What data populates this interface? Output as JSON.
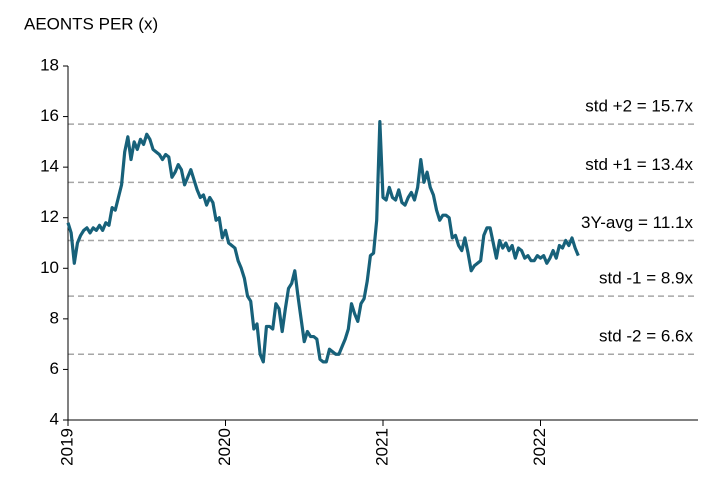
{
  "chart_data": {
    "type": "line",
    "title": "AEONTS PER (x)",
    "x": [
      2019.0,
      2019.02,
      2019.04,
      2019.06,
      2019.08,
      2019.1,
      2019.12,
      2019.14,
      2019.16,
      2019.18,
      2019.2,
      2019.22,
      2019.24,
      2019.26,
      2019.28,
      2019.3,
      2019.32,
      2019.34,
      2019.36,
      2019.38,
      2019.4,
      2019.42,
      2019.44,
      2019.46,
      2019.48,
      2019.5,
      2019.52,
      2019.54,
      2019.56,
      2019.58,
      2019.6,
      2019.62,
      2019.64,
      2019.66,
      2019.68,
      2019.7,
      2019.72,
      2019.74,
      2019.76,
      2019.78,
      2019.8,
      2019.82,
      2019.84,
      2019.86,
      2019.88,
      2019.9,
      2019.92,
      2019.94,
      2019.96,
      2019.98,
      2020.0,
      2020.02,
      2020.04,
      2020.06,
      2020.08,
      2020.1,
      2020.12,
      2020.14,
      2020.16,
      2020.18,
      2020.2,
      2020.22,
      2020.24,
      2020.26,
      2020.28,
      2020.3,
      2020.32,
      2020.34,
      2020.36,
      2020.38,
      2020.4,
      2020.42,
      2020.44,
      2020.46,
      2020.48,
      2020.5,
      2020.52,
      2020.54,
      2020.56,
      2020.58,
      2020.6,
      2020.62,
      2020.64,
      2020.66,
      2020.68,
      2020.7,
      2020.72,
      2020.74,
      2020.76,
      2020.78,
      2020.8,
      2020.82,
      2020.84,
      2020.86,
      2020.88,
      2020.9,
      2020.92,
      2020.94,
      2020.96,
      2020.98,
      2021.0,
      2021.02,
      2021.04,
      2021.06,
      2021.08,
      2021.1,
      2021.12,
      2021.14,
      2021.16,
      2021.18,
      2021.2,
      2021.22,
      2021.24,
      2021.26,
      2021.28,
      2021.3,
      2021.32,
      2021.34,
      2021.36,
      2021.38,
      2021.4,
      2021.42,
      2021.44,
      2021.46,
      2021.48,
      2021.5,
      2021.52,
      2021.54,
      2021.56,
      2021.58,
      2021.6,
      2021.62,
      2021.64,
      2021.66,
      2021.68,
      2021.7,
      2021.72,
      2021.74,
      2021.76,
      2021.78,
      2021.8,
      2021.82,
      2021.84,
      2021.86,
      2021.88,
      2021.9,
      2021.92,
      2021.94,
      2021.96,
      2021.98,
      2022.0,
      2022.02,
      2022.04,
      2022.06,
      2022.08,
      2022.1,
      2022.12,
      2022.14,
      2022.16,
      2022.18,
      2022.2,
      2022.22,
      2022.24
    ],
    "series": [
      {
        "name": "AEONTS PER",
        "color": "#17617a",
        "values": [
          11.8,
          11.4,
          10.2,
          11.0,
          11.3,
          11.5,
          11.6,
          11.4,
          11.6,
          11.5,
          11.7,
          11.5,
          11.8,
          11.7,
          12.4,
          12.3,
          12.8,
          13.3,
          14.6,
          15.2,
          14.3,
          15.0,
          14.7,
          15.1,
          14.9,
          15.3,
          15.1,
          14.7,
          14.6,
          14.5,
          14.3,
          14.5,
          14.4,
          13.6,
          13.8,
          14.1,
          13.9,
          13.3,
          13.6,
          13.9,
          13.5,
          13.1,
          12.8,
          12.9,
          12.5,
          12.8,
          12.6,
          11.9,
          12.0,
          11.2,
          11.5,
          11.0,
          10.9,
          10.8,
          10.3,
          10.0,
          9.6,
          8.9,
          8.7,
          7.6,
          7.8,
          6.6,
          6.3,
          7.7,
          7.7,
          7.6,
          8.6,
          8.4,
          7.5,
          8.4,
          9.2,
          9.4,
          9.9,
          8.9,
          8.0,
          7.1,
          7.5,
          7.3,
          7.3,
          7.2,
          6.4,
          6.3,
          6.3,
          6.8,
          6.7,
          6.6,
          6.6,
          6.9,
          7.2,
          7.6,
          8.6,
          8.2,
          7.9,
          8.6,
          8.8,
          9.5,
          10.5,
          10.6,
          11.9,
          15.8,
          12.8,
          12.7,
          13.2,
          12.8,
          12.7,
          13.1,
          12.6,
          12.5,
          12.8,
          13.0,
          12.7,
          13.2,
          14.3,
          13.4,
          13.8,
          13.2,
          12.9,
          12.3,
          11.9,
          12.1,
          12.1,
          12.0,
          11.2,
          11.3,
          10.9,
          10.7,
          11.2,
          10.6,
          9.9,
          10.1,
          10.2,
          10.3,
          11.3,
          11.6,
          11.6,
          11.0,
          10.4,
          11.1,
          10.8,
          11.0,
          10.7,
          10.9,
          10.4,
          10.8,
          10.7,
          10.4,
          10.5,
          10.3,
          10.3,
          10.5,
          10.4,
          10.5,
          10.2,
          10.4,
          10.7,
          10.4,
          10.9,
          10.8,
          11.1,
          10.9,
          11.2,
          10.8,
          10.5
        ]
      }
    ],
    "reference_lines": [
      {
        "label": "std +2 = 15.7x",
        "value": 15.7
      },
      {
        "label": "std +1 = 13.4x",
        "value": 13.4
      },
      {
        "label": "3Y-avg = 11.1x",
        "value": 11.1
      },
      {
        "label": "std -1 = 8.9x",
        "value": 8.9
      },
      {
        "label": "std -2 = 6.6x",
        "value": 6.6
      }
    ],
    "reference_color": "#a6a6a6",
    "xlim": [
      2019,
      2023
    ],
    "xticks": [
      2019,
      2020,
      2021,
      2022
    ],
    "ylim": [
      4,
      18
    ],
    "yticks": [
      4,
      6,
      8,
      10,
      12,
      14,
      16,
      18
    ],
    "grid": false
  }
}
